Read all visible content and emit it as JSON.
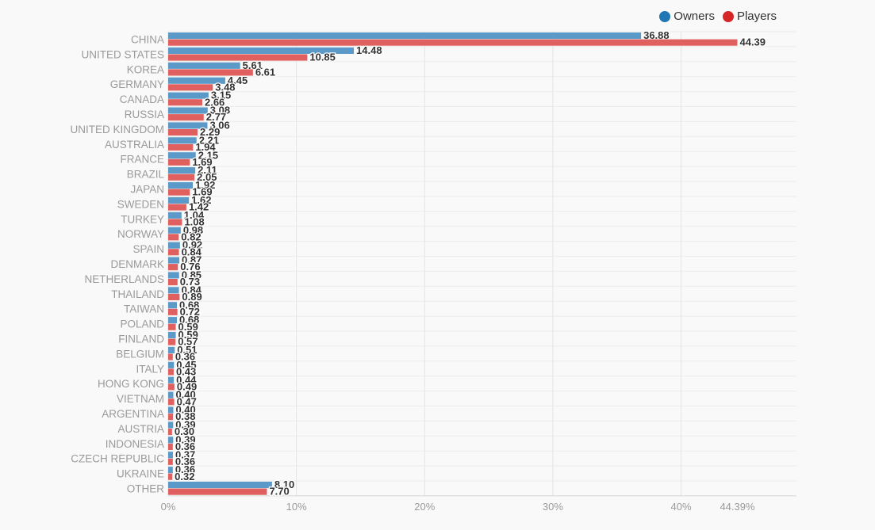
{
  "chart_data": {
    "type": "bar",
    "orientation": "horizontal",
    "categories": [
      "CHINA",
      "UNITED STATES",
      "KOREA",
      "GERMANY",
      "CANADA",
      "RUSSIA",
      "UNITED KINGDOM",
      "AUSTRALIA",
      "FRANCE",
      "BRAZIL",
      "JAPAN",
      "SWEDEN",
      "TURKEY",
      "NORWAY",
      "SPAIN",
      "DENMARK",
      "NETHERLANDS",
      "THAILAND",
      "TAIWAN",
      "POLAND",
      "FINLAND",
      "BELGIUM",
      "ITALY",
      "HONG KONG",
      "VIETNAM",
      "ARGENTINA",
      "AUSTRIA",
      "INDONESIA",
      "CZECH REPUBLIC",
      "UKRAINE",
      "OTHER"
    ],
    "series": [
      {
        "name": "Owners",
        "color": "#5b9ac8",
        "legend_color": "#1f77b4",
        "values": [
          36.88,
          14.48,
          5.61,
          4.45,
          3.15,
          3.08,
          3.06,
          2.21,
          2.15,
          2.11,
          1.92,
          1.62,
          1.04,
          0.98,
          0.92,
          0.87,
          0.85,
          0.84,
          0.68,
          0.68,
          0.59,
          0.51,
          0.45,
          0.44,
          0.4,
          0.4,
          0.39,
          0.39,
          0.37,
          0.36,
          8.1
        ],
        "labels": [
          "36.88",
          "14.48",
          "5.61",
          "4.45",
          "3.15",
          "3.08",
          "3.06",
          "2.21",
          "2.15",
          "2.11",
          "1.92",
          "1.62",
          "1.04",
          "0.98",
          "0.92",
          "0.87",
          "0.85",
          "0.84",
          "0.68",
          "0.68",
          "0.59",
          "0.51",
          "0.45",
          "0.44",
          "0.40",
          "0.40",
          "0.39",
          "0.39",
          "0.37",
          "0.36",
          "8.10"
        ]
      },
      {
        "name": "Players",
        "color": "#e0605f",
        "legend_color": "#d62728",
        "values": [
          44.39,
          10.85,
          6.61,
          3.48,
          2.66,
          2.77,
          2.29,
          1.94,
          1.69,
          2.05,
          1.69,
          1.42,
          1.08,
          0.82,
          0.84,
          0.76,
          0.73,
          0.89,
          0.72,
          0.59,
          0.57,
          0.36,
          0.43,
          0.49,
          0.47,
          0.38,
          0.3,
          0.36,
          0.36,
          0.32,
          7.7
        ],
        "labels": [
          "44.39",
          "10.85",
          "6.61",
          "3.48",
          "2.66",
          "2.77",
          "2.29",
          "1.94",
          "1.69",
          "2.05",
          "1.69",
          "1.42",
          "1.08",
          "0.82",
          "0.84",
          "0.76",
          "0.73",
          "0.89",
          "0.72",
          "0.59",
          "0.57",
          "0.36",
          "0.43",
          "0.49",
          "0.47",
          "0.38",
          "0.30",
          "0.36",
          "0.36",
          "0.32",
          "7.70"
        ]
      }
    ],
    "x_ticks": [
      "0%",
      "10%",
      "20%",
      "30%",
      "40%"
    ],
    "x_tick_values": [
      0,
      10,
      20,
      30,
      40
    ],
    "x_max_label": "44.39%",
    "x_max_value": 44.39,
    "xlim": [
      0,
      49
    ],
    "legend_position": "top-right",
    "grid": true
  }
}
